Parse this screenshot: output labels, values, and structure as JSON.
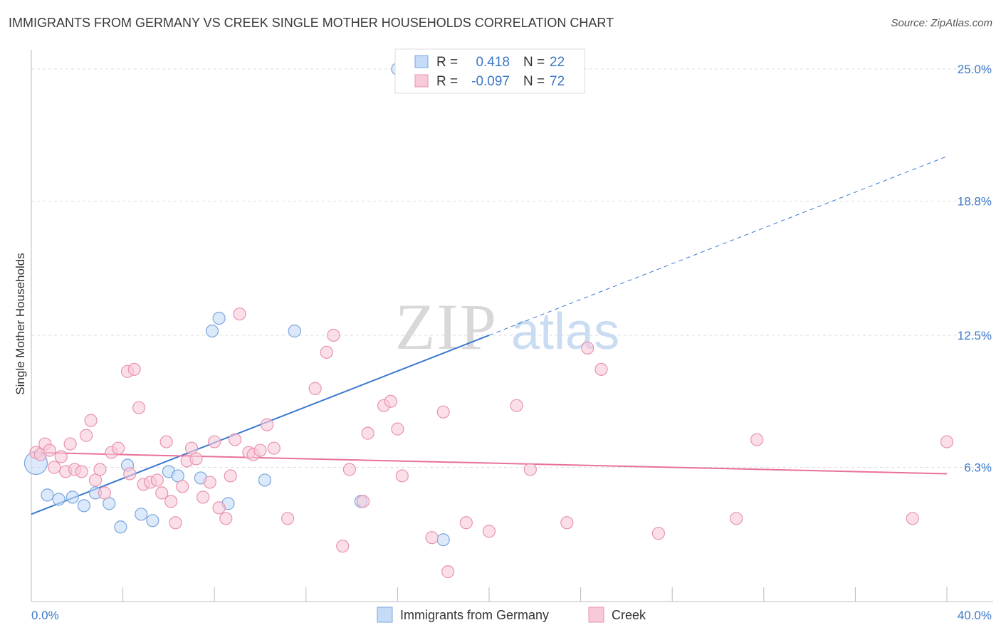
{
  "title": "IMMIGRANTS FROM GERMANY VS CREEK SINGLE MOTHER HOUSEHOLDS CORRELATION CHART",
  "source": "Source: ZipAtlas.com",
  "watermark": {
    "zip": "ZIP",
    "atlas": "atlas"
  },
  "colors": {
    "blue": "#3a78d0",
    "pink": "#e8709a",
    "blue_fill": "#c5dbf7",
    "pink_fill": "#f8cad9",
    "accent_text": "#3b78c8"
  },
  "chart_data": {
    "type": "scatter",
    "title": "IMMIGRANTS FROM GERMANY VS CREEK SINGLE MOTHER HOUSEHOLDS CORRELATION CHART",
    "xlabel": "",
    "ylabel": "Single Mother Households",
    "xlim": [
      0,
      40
    ],
    "ylim": [
      0,
      25.9
    ],
    "x_tick_labels": [
      "0.0%",
      "40.0%"
    ],
    "y_ticks": [
      6.3,
      12.5,
      18.8,
      25.0
    ],
    "y_tick_labels": [
      "6.3%",
      "12.5%",
      "18.8%",
      "25.0%"
    ],
    "grid": true,
    "legend": {
      "position": "top-center",
      "entries": [
        {
          "r_label": "R =",
          "r_value": "0.418",
          "n_label": "N =",
          "n_value": "22"
        },
        {
          "r_label": "R =",
          "r_value": "-0.097",
          "n_label": "N =",
          "n_value": "72"
        }
      ]
    },
    "series": [
      {
        "name": "Immigrants from Germany",
        "color": "#3a78d0",
        "trend": {
          "x": [
            0,
            20
          ],
          "y": [
            4.1,
            12.5
          ],
          "dashed_extension": {
            "x": [
              20,
              40
            ],
            "y": [
              12.5,
              20.9
            ]
          }
        },
        "points": [
          [
            0.2,
            6.5
          ],
          [
            0.7,
            5.0
          ],
          [
            1.2,
            4.8
          ],
          [
            1.8,
            4.9
          ],
          [
            2.3,
            4.5
          ],
          [
            2.8,
            5.1
          ],
          [
            3.4,
            4.6
          ],
          [
            3.9,
            3.5
          ],
          [
            4.2,
            6.4
          ],
          [
            4.8,
            4.1
          ],
          [
            5.3,
            3.8
          ],
          [
            6.0,
            6.1
          ],
          [
            6.4,
            5.9
          ],
          [
            7.4,
            5.8
          ],
          [
            7.9,
            12.7
          ],
          [
            8.2,
            13.3
          ],
          [
            8.6,
            4.6
          ],
          [
            10.2,
            5.7
          ],
          [
            11.5,
            12.7
          ],
          [
            14.4,
            4.7
          ],
          [
            16.0,
            25.0
          ],
          [
            18.0,
            2.9
          ]
        ]
      },
      {
        "name": "Creek",
        "color": "#e8709a",
        "trend": {
          "x": [
            0,
            40
          ],
          "y": [
            7.0,
            6.0
          ]
        },
        "points": [
          [
            0.2,
            7.0
          ],
          [
            0.4,
            6.9
          ],
          [
            0.6,
            7.4
          ],
          [
            0.8,
            7.1
          ],
          [
            1.0,
            6.3
          ],
          [
            1.3,
            6.8
          ],
          [
            1.5,
            6.1
          ],
          [
            1.7,
            7.4
          ],
          [
            1.9,
            6.2
          ],
          [
            2.2,
            6.1
          ],
          [
            2.4,
            7.8
          ],
          [
            2.6,
            8.5
          ],
          [
            2.8,
            5.7
          ],
          [
            3.0,
            6.2
          ],
          [
            3.2,
            5.1
          ],
          [
            3.5,
            7.0
          ],
          [
            3.8,
            7.2
          ],
          [
            4.2,
            10.8
          ],
          [
            4.3,
            6.0
          ],
          [
            4.5,
            10.9
          ],
          [
            4.7,
            9.1
          ],
          [
            4.9,
            5.5
          ],
          [
            5.2,
            5.6
          ],
          [
            5.5,
            5.7
          ],
          [
            5.7,
            5.1
          ],
          [
            5.9,
            7.5
          ],
          [
            6.1,
            4.7
          ],
          [
            6.3,
            3.7
          ],
          [
            6.6,
            5.4
          ],
          [
            6.8,
            6.6
          ],
          [
            7.0,
            7.2
          ],
          [
            7.2,
            6.7
          ],
          [
            7.5,
            4.9
          ],
          [
            7.8,
            5.6
          ],
          [
            8.0,
            7.5
          ],
          [
            8.2,
            4.4
          ],
          [
            8.5,
            3.9
          ],
          [
            8.7,
            5.9
          ],
          [
            8.9,
            7.6
          ],
          [
            9.1,
            13.5
          ],
          [
            9.5,
            7.0
          ],
          [
            9.7,
            6.9
          ],
          [
            10.0,
            7.1
          ],
          [
            10.3,
            8.3
          ],
          [
            10.6,
            7.2
          ],
          [
            11.2,
            3.9
          ],
          [
            12.4,
            10.0
          ],
          [
            12.9,
            11.7
          ],
          [
            13.2,
            12.5
          ],
          [
            13.6,
            2.6
          ],
          [
            13.9,
            6.2
          ],
          [
            14.5,
            4.7
          ],
          [
            14.7,
            7.9
          ],
          [
            15.4,
            9.2
          ],
          [
            15.7,
            9.4
          ],
          [
            16.0,
            8.1
          ],
          [
            16.2,
            5.9
          ],
          [
            17.5,
            3.0
          ],
          [
            18.0,
            8.9
          ],
          [
            18.2,
            1.4
          ],
          [
            19.0,
            3.7
          ],
          [
            20.0,
            3.3
          ],
          [
            21.2,
            9.2
          ],
          [
            21.8,
            6.2
          ],
          [
            23.4,
            3.7
          ],
          [
            24.3,
            11.9
          ],
          [
            24.9,
            10.9
          ],
          [
            27.4,
            3.2
          ],
          [
            30.8,
            3.9
          ],
          [
            31.7,
            7.6
          ],
          [
            38.5,
            3.9
          ],
          [
            40.0,
            7.5
          ]
        ]
      }
    ]
  }
}
